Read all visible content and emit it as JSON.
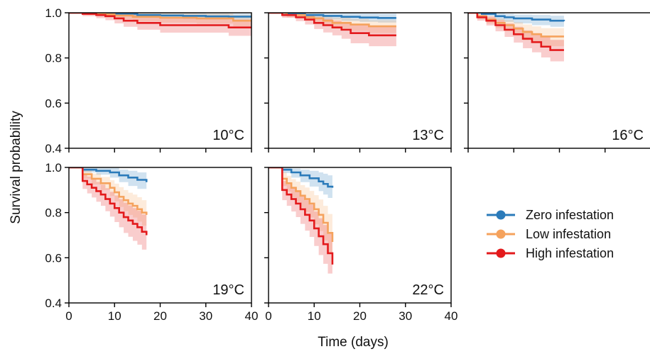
{
  "chart_data": {
    "type": "line",
    "subtype": "kaplan-meier survival curves with confidence bands, small multiples",
    "xlabel": "Time (days)",
    "ylabel": "Survival probability",
    "xlim": [
      0,
      40
    ],
    "ylim": [
      0.4,
      1.0
    ],
    "xticks": [
      0,
      10,
      20,
      30,
      40
    ],
    "yticks": [
      0.4,
      0.6,
      0.8,
      1.0
    ],
    "xtick_labels": [
      "0",
      "10",
      "20",
      "30",
      "40"
    ],
    "ytick_labels": [
      "0.4",
      "0.6",
      "0.8",
      "1.0"
    ],
    "grid": false,
    "legend_position": "right",
    "series_styles": [
      {
        "name": "Zero infestation",
        "color": "#2b7bba"
      },
      {
        "name": "Low infestation",
        "color": "#f5a25d"
      },
      {
        "name": "High infestation",
        "color": "#e31a1c"
      }
    ],
    "panels": [
      {
        "label": "10°C",
        "series": [
          {
            "name": "Zero infestation",
            "x": [
              0,
              5,
              10,
              15,
              20,
              25,
              30,
              35,
              40
            ],
            "y": [
              1.0,
              0.998,
              0.995,
              0.99,
              0.988,
              0.986,
              0.984,
              0.983,
              0.983
            ],
            "lower": [
              1.0,
              0.993,
              0.986,
              0.978,
              0.975,
              0.973,
              0.971,
              0.97,
              0.97
            ],
            "upper": [
              1.0,
              1.0,
              1.0,
              1.0,
              1.0,
              1.0,
              0.997,
              0.996,
              0.996
            ]
          },
          {
            "name": "Low infestation",
            "x": [
              0,
              4,
              8,
              10,
              14,
              20,
              28,
              36,
              40
            ],
            "y": [
              1.0,
              0.997,
              0.993,
              0.988,
              0.982,
              0.978,
              0.975,
              0.965,
              0.965
            ],
            "lower": [
              1.0,
              0.99,
              0.98,
              0.972,
              0.962,
              0.956,
              0.952,
              0.94,
              0.94
            ],
            "upper": [
              1.0,
              1.0,
              1.0,
              1.0,
              1.0,
              1.0,
              0.997,
              0.99,
              0.99
            ]
          },
          {
            "name": "High infestation",
            "x": [
              0,
              3,
              6,
              8,
              10,
              12,
              15,
              20,
              25,
              30,
              35,
              40
            ],
            "y": [
              1.0,
              0.995,
              0.99,
              0.985,
              0.975,
              0.965,
              0.955,
              0.945,
              0.945,
              0.945,
              0.935,
              0.935
            ],
            "lower": [
              1.0,
              0.985,
              0.976,
              0.967,
              0.953,
              0.938,
              0.925,
              0.912,
              0.912,
              0.912,
              0.898,
              0.898
            ],
            "upper": [
              1.0,
              1.0,
              1.0,
              1.0,
              0.997,
              0.99,
              0.983,
              0.976,
              0.976,
              0.976,
              0.97,
              0.97
            ]
          }
        ]
      },
      {
        "label": "13°C",
        "series": [
          {
            "name": "Zero infestation",
            "x": [
              0,
              4,
              8,
              12,
              16,
              20,
              24,
              28
            ],
            "y": [
              1.0,
              0.997,
              0.99,
              0.986,
              0.982,
              0.979,
              0.977,
              0.977
            ],
            "lower": [
              1.0,
              0.99,
              0.978,
              0.97,
              0.964,
              0.96,
              0.957,
              0.957
            ],
            "upper": [
              1.0,
              1.0,
              1.0,
              1.0,
              0.999,
              0.997,
              0.996,
              0.996
            ]
          },
          {
            "name": "Low infestation",
            "x": [
              0,
              4,
              8,
              10,
              12,
              14,
              18,
              22,
              28
            ],
            "y": [
              1.0,
              0.99,
              0.98,
              0.975,
              0.965,
              0.955,
              0.948,
              0.94,
              0.94
            ],
            "lower": [
              1.0,
              0.98,
              0.965,
              0.955,
              0.942,
              0.93,
              0.92,
              0.91,
              0.91
            ],
            "upper": [
              1.0,
              1.0,
              0.995,
              0.992,
              0.986,
              0.978,
              0.973,
              0.967,
              0.967
            ]
          },
          {
            "name": "High infestation",
            "x": [
              0,
              3,
              6,
              8,
              10,
              12,
              14,
              16,
              18,
              22,
              28
            ],
            "y": [
              1.0,
              0.99,
              0.98,
              0.97,
              0.955,
              0.945,
              0.935,
              0.925,
              0.91,
              0.9,
              0.9
            ],
            "lower": [
              1.0,
              0.978,
              0.963,
              0.948,
              0.928,
              0.913,
              0.9,
              0.885,
              0.865,
              0.852,
              0.852
            ],
            "upper": [
              1.0,
              1.0,
              0.995,
              0.99,
              0.98,
              0.973,
              0.966,
              0.96,
              0.95,
              0.943,
              0.943
            ]
          }
        ]
      },
      {
        "label": "16°C",
        "series": [
          {
            "name": "Zero infestation",
            "x": [
              0,
              3,
              6,
              8,
              10,
              14,
              18,
              21
            ],
            "y": [
              1.0,
              0.995,
              0.985,
              0.98,
              0.975,
              0.97,
              0.965,
              0.963
            ],
            "lower": [
              1.0,
              0.985,
              0.968,
              0.96,
              0.953,
              0.945,
              0.938,
              0.935
            ],
            "upper": [
              1.0,
              1.0,
              0.998,
              0.995,
              0.992,
              0.99,
              0.987,
              0.986
            ]
          },
          {
            "name": "Low infestation",
            "x": [
              0,
              2,
              4,
              6,
              8,
              10,
              12,
              14,
              16,
              21
            ],
            "y": [
              1.0,
              0.985,
              0.97,
              0.955,
              0.945,
              0.93,
              0.915,
              0.905,
              0.895,
              0.895
            ],
            "lower": [
              1.0,
              0.972,
              0.952,
              0.932,
              0.918,
              0.898,
              0.878,
              0.865,
              0.852,
              0.852
            ],
            "upper": [
              1.0,
              0.995,
              0.985,
              0.975,
              0.968,
              0.958,
              0.948,
              0.94,
              0.932,
              0.932
            ]
          },
          {
            "name": "High infestation",
            "x": [
              0,
              2,
              4,
              6,
              8,
              10,
              12,
              14,
              16,
              18,
              21
            ],
            "y": [
              1.0,
              0.98,
              0.965,
              0.945,
              0.925,
              0.905,
              0.885,
              0.87,
              0.85,
              0.835,
              0.835
            ],
            "lower": [
              1.0,
              0.965,
              0.944,
              0.918,
              0.893,
              0.868,
              0.843,
              0.825,
              0.802,
              0.785,
              0.785
            ],
            "upper": [
              1.0,
              0.993,
              0.983,
              0.968,
              0.953,
              0.938,
              0.922,
              0.91,
              0.893,
              0.88,
              0.88
            ]
          }
        ]
      },
      {
        "label": "19°C",
        "series": [
          {
            "name": "Zero infestation",
            "x": [
              0,
              3,
              6,
              9,
              11,
              13,
              15,
              17
            ],
            "y": [
              1.0,
              0.99,
              0.985,
              0.978,
              0.965,
              0.955,
              0.945,
              0.935
            ],
            "lower": [
              1.0,
              0.978,
              0.968,
              0.955,
              0.935,
              0.918,
              0.905,
              0.89
            ],
            "upper": [
              1.0,
              1.0,
              1.0,
              0.998,
              0.99,
              0.985,
              0.978,
              0.972
            ]
          },
          {
            "name": "Low infestation",
            "x": [
              0,
              3,
              5,
              7,
              9,
              10,
              11,
              12,
              13,
              14,
              15,
              16,
              17
            ],
            "y": [
              1.0,
              0.97,
              0.95,
              0.93,
              0.91,
              0.89,
              0.87,
              0.855,
              0.84,
              0.83,
              0.815,
              0.8,
              0.79
            ],
            "lower": [
              1.0,
              0.95,
              0.925,
              0.9,
              0.873,
              0.85,
              0.825,
              0.807,
              0.79,
              0.778,
              0.76,
              0.742,
              0.73
            ],
            "upper": [
              1.0,
              0.988,
              0.973,
              0.958,
              0.943,
              0.928,
              0.913,
              0.9,
              0.888,
              0.88,
              0.868,
              0.855,
              0.847
            ]
          },
          {
            "name": "High infestation",
            "x": [
              0,
              3,
              4,
              5,
              6,
              7,
              8,
              9,
              10,
              11,
              12,
              13,
              14,
              15,
              16,
              17
            ],
            "y": [
              1.0,
              0.94,
              0.925,
              0.91,
              0.895,
              0.88,
              0.86,
              0.84,
              0.82,
              0.8,
              0.78,
              0.765,
              0.75,
              0.735,
              0.715,
              0.7
            ],
            "lower": [
              1.0,
              0.905,
              0.885,
              0.867,
              0.848,
              0.83,
              0.806,
              0.782,
              0.758,
              0.735,
              0.71,
              0.693,
              0.675,
              0.658,
              0.636,
              0.62
            ],
            "upper": [
              1.0,
              0.97,
              0.96,
              0.948,
              0.936,
              0.924,
              0.908,
              0.892,
              0.876,
              0.86,
              0.844,
              0.832,
              0.82,
              0.808,
              0.792,
              0.78
            ]
          }
        ]
      },
      {
        "label": "22°C",
        "series": [
          {
            "name": "Zero infestation",
            "x": [
              0,
              3,
              5,
              7,
              9,
              11,
              12,
              13,
              14
            ],
            "y": [
              1.0,
              0.99,
              0.978,
              0.965,
              0.952,
              0.938,
              0.927,
              0.915,
              0.91
            ],
            "lower": [
              1.0,
              0.975,
              0.955,
              0.935,
              0.915,
              0.895,
              0.88,
              0.865,
              0.858
            ],
            "upper": [
              1.0,
              1.0,
              0.995,
              0.99,
              0.985,
              0.978,
              0.972,
              0.965,
              0.962
            ]
          },
          {
            "name": "Low infestation",
            "x": [
              0,
              3,
              4,
              5,
              6,
              7,
              8,
              9,
              10,
              11,
              12,
              13,
              14
            ],
            "y": [
              1.0,
              0.95,
              0.93,
              0.91,
              0.895,
              0.875,
              0.86,
              0.84,
              0.815,
              0.79,
              0.755,
              0.71,
              0.67
            ],
            "lower": [
              1.0,
              0.918,
              0.893,
              0.868,
              0.848,
              0.823,
              0.803,
              0.778,
              0.748,
              0.718,
              0.677,
              0.625,
              0.58
            ],
            "upper": [
              1.0,
              0.978,
              0.963,
              0.948,
              0.937,
              0.922,
              0.911,
              0.896,
              0.877,
              0.858,
              0.83,
              0.794,
              0.76
            ]
          },
          {
            "name": "High infestation",
            "x": [
              0,
              3,
              4,
              5,
              6,
              7,
              8,
              9,
              10,
              11,
              12,
              13,
              14
            ],
            "y": [
              1.0,
              0.9,
              0.88,
              0.86,
              0.84,
              0.815,
              0.79,
              0.765,
              0.73,
              0.695,
              0.66,
              0.62,
              0.57
            ],
            "lower": [
              1.0,
              0.855,
              0.83,
              0.805,
              0.78,
              0.75,
              0.72,
              0.692,
              0.652,
              0.612,
              0.573,
              0.53,
              0.475
            ],
            "upper": [
              1.0,
              0.94,
              0.925,
              0.91,
              0.895,
              0.875,
              0.855,
              0.835,
              0.805,
              0.775,
              0.745,
              0.71,
              0.665
            ]
          }
        ]
      }
    ]
  }
}
